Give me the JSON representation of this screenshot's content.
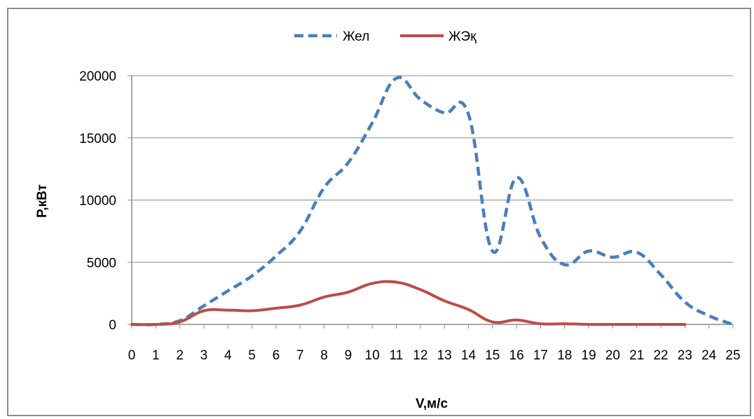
{
  "chart_data": {
    "type": "line",
    "title": "",
    "xlabel": "V,м/с",
    "ylabel": "P,кВт",
    "xlim": [
      0,
      25
    ],
    "ylim": [
      0,
      20000
    ],
    "x_ticks": [
      0,
      1,
      2,
      3,
      4,
      5,
      6,
      7,
      8,
      9,
      10,
      11,
      12,
      13,
      14,
      15,
      16,
      17,
      18,
      19,
      20,
      21,
      22,
      23,
      24,
      25
    ],
    "y_ticks": [
      0,
      5000,
      10000,
      15000,
      20000
    ],
    "grid": "horizontal",
    "legend_position": "top",
    "series": [
      {
        "name": "Жел",
        "style": "dashed",
        "color": "#4a7ebb",
        "x": [
          0,
          1,
          2,
          3,
          4,
          5,
          6,
          7,
          8,
          9,
          10,
          11,
          12,
          13,
          14,
          15,
          16,
          17,
          18,
          19,
          20,
          21,
          22,
          23,
          24,
          25
        ],
        "y": [
          0,
          0,
          300,
          1500,
          2700,
          3900,
          5500,
          7500,
          11000,
          13000,
          16200,
          19800,
          18100,
          17000,
          16900,
          5900,
          11800,
          7000,
          4800,
          5900,
          5400,
          5800,
          4000,
          1800,
          700,
          0
        ]
      },
      {
        "name": "ЖЭқ",
        "style": "solid",
        "color": "#be4b48",
        "x": [
          0,
          1,
          2,
          3,
          4,
          5,
          6,
          7,
          8,
          9,
          10,
          11,
          12,
          13,
          14,
          15,
          16,
          17,
          18,
          19,
          20,
          21,
          22,
          23
        ],
        "y": [
          0,
          0,
          200,
          1100,
          1150,
          1100,
          1300,
          1550,
          2200,
          2600,
          3300,
          3400,
          2800,
          1900,
          1200,
          200,
          350,
          50,
          50,
          0,
          0,
          0,
          0,
          0
        ]
      }
    ]
  }
}
